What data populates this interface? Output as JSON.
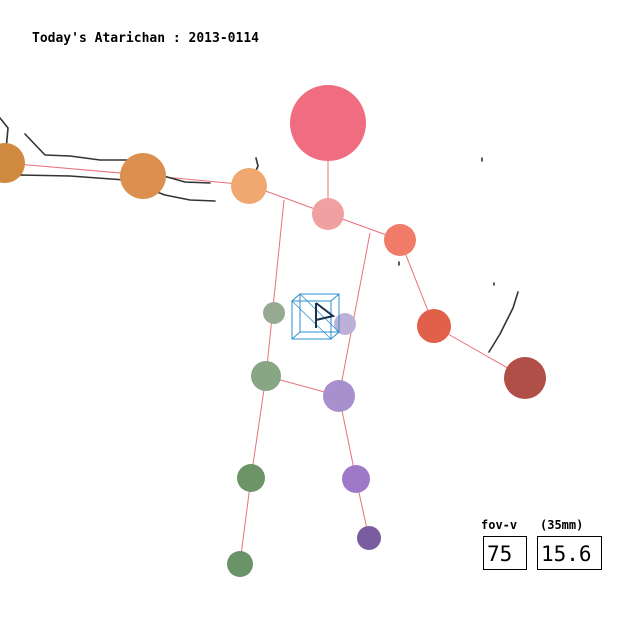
{
  "header": {
    "title": "Today's Atarichan : 2013-0114"
  },
  "camera": {
    "fov_label": "fov-v",
    "mm_label": "(35mm)",
    "fov_value": "75",
    "mm_value": "15.6"
  },
  "colors": {
    "background": "#ffffff",
    "bone_line": "#e8707a",
    "gizmo": "#2a8fd0",
    "sketch": "#333333",
    "head": "#f06c80",
    "neck": "#f0a0a0",
    "shoulder_left": "#f0a870",
    "elbow_left": "#dc9050",
    "hand_left": "#d08a40",
    "shoulder_right": "#f07c68",
    "elbow_right": "#e0604a",
    "hand_right": "#b04e48",
    "hip_left": "#96aa92",
    "hip_right": "#bcb0d8",
    "knee_left": "#86a684",
    "knee_right": "#a890cc",
    "ankle_left": "#6c9466",
    "ankle_right": "#a078c8",
    "foot_left": "#6a9468",
    "foot_right": "#7a5ca0"
  }
}
